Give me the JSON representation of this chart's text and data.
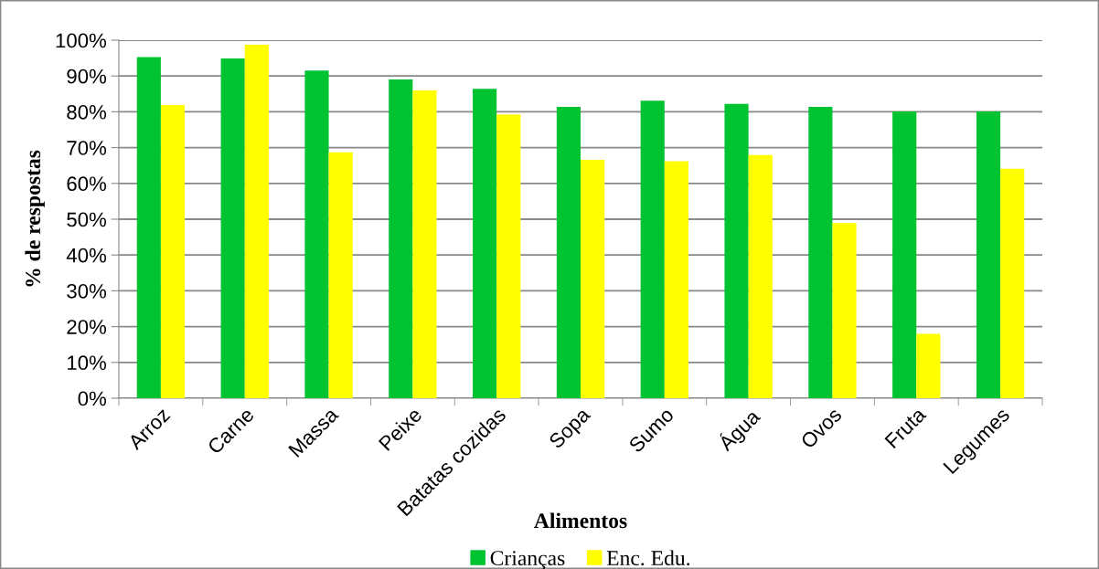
{
  "chart_data": {
    "type": "bar",
    "xlabel": "Alimentos",
    "ylabel": "% de respostas",
    "categories": [
      "Arroz",
      "Carne",
      "Massa",
      "Peixe",
      "Batatas cozidas",
      "Sopa",
      "Sumo",
      "Água",
      "Ovos",
      "Fruta",
      "Legumes"
    ],
    "series": [
      {
        "name": "Crianças",
        "color": "#00c331",
        "values": [
          95.3,
          94.9,
          91.5,
          89.0,
          86.4,
          81.4,
          83.1,
          82.2,
          81.4,
          80.1,
          80.1
        ]
      },
      {
        "name": "Enc. Edu.",
        "color": "#ffff00",
        "values": [
          81.9,
          98.7,
          68.7,
          86.0,
          79.3,
          66.6,
          66.2,
          67.9,
          48.9,
          18.0,
          64.1
        ]
      }
    ],
    "ylim": [
      0,
      100
    ],
    "yticks": [
      {
        "value": 0,
        "label": "0%"
      },
      {
        "value": 10,
        "label": "10%"
      },
      {
        "value": 20,
        "label": "20%"
      },
      {
        "value": 30,
        "label": "30%"
      },
      {
        "value": 40,
        "label": "40%"
      },
      {
        "value": 50,
        "label": "50%"
      },
      {
        "value": 60,
        "label": "60%"
      },
      {
        "value": 70,
        "label": "70%"
      },
      {
        "value": 80,
        "label": "80%"
      },
      {
        "value": 90,
        "label": "90%"
      },
      {
        "value": 100,
        "label": "100%"
      }
    ],
    "grid": "y",
    "legend": "bottom"
  }
}
